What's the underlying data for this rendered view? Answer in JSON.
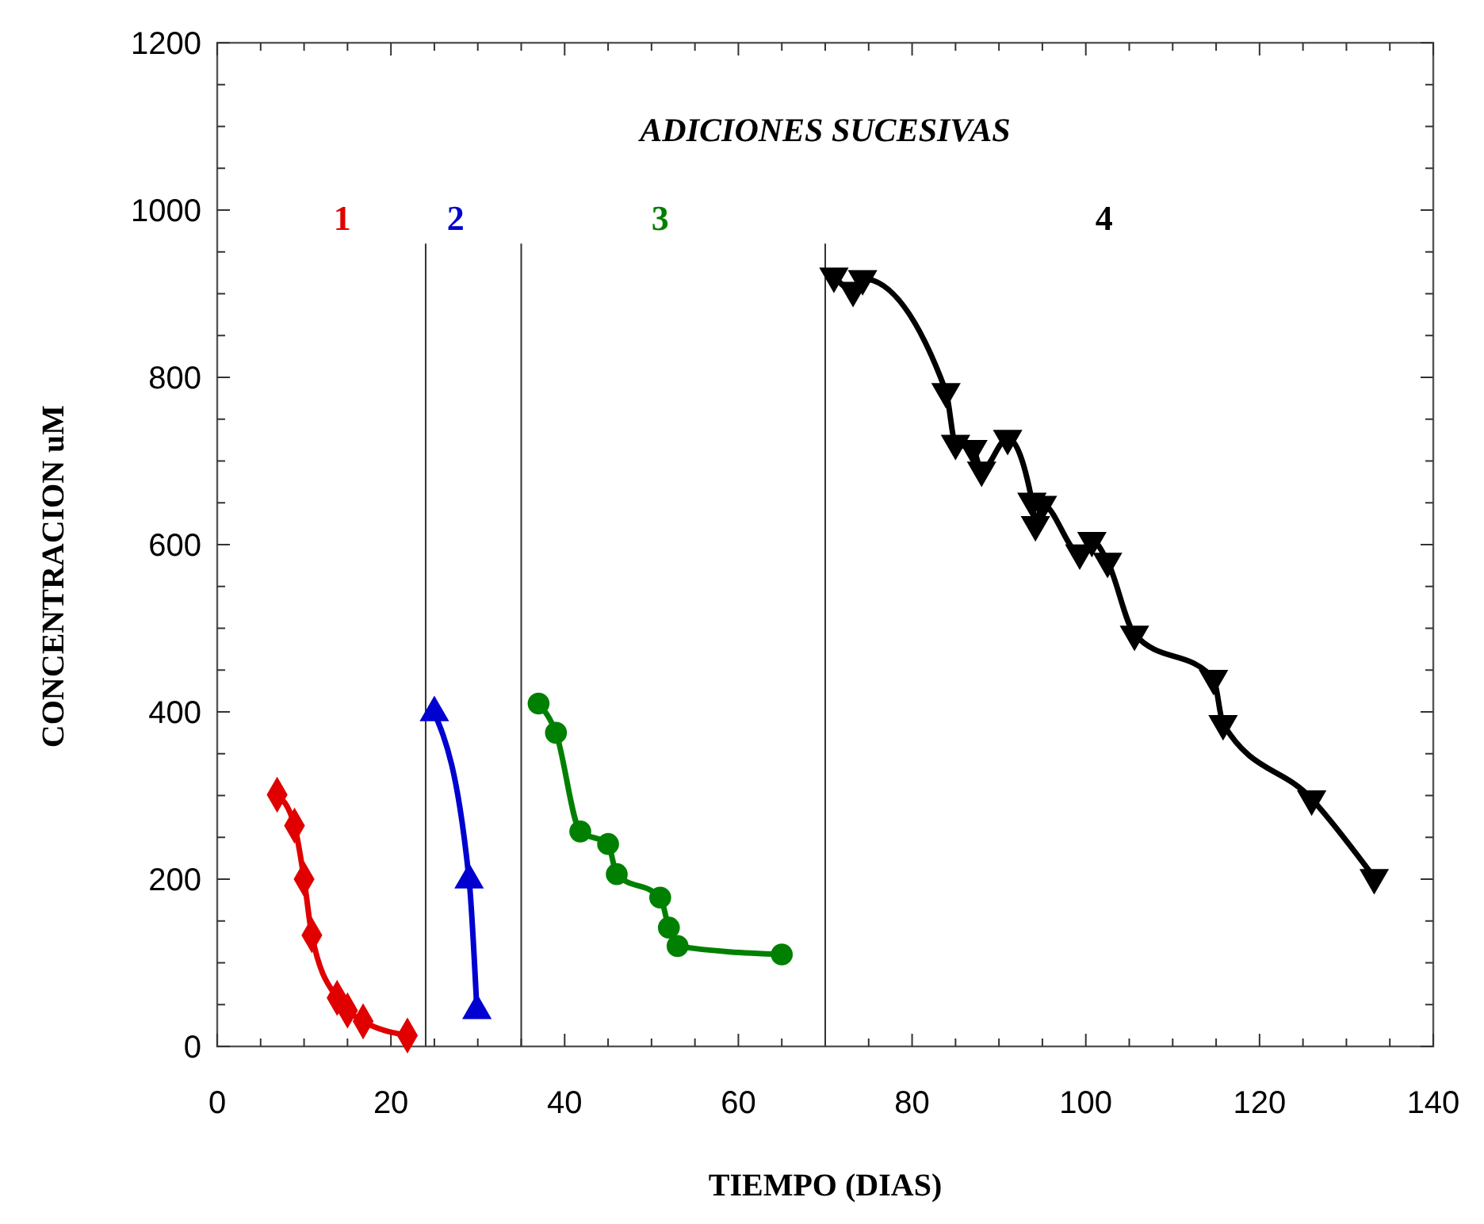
{
  "chart_data": {
    "type": "line",
    "title": "ADICIONES SUCESIVAS",
    "xlabel": "TIEMPO (DIAS)",
    "ylabel": "CONCENTRACION uM",
    "xlim": [
      0,
      140
    ],
    "xticks": [
      0,
      20,
      40,
      60,
      80,
      100,
      120,
      140
    ],
    "ylim": [
      0,
      1200
    ],
    "yticks": [
      0,
      200,
      400,
      600,
      800,
      1000,
      1200
    ],
    "grid": false,
    "ref_lines": [
      {
        "axis": "x",
        "value": 24
      },
      {
        "axis": "x",
        "value": 35
      },
      {
        "axis": "x",
        "value": 70
      }
    ],
    "series": [
      {
        "name": "1",
        "color": "#e00000",
        "marker": "diamond",
        "x": [
          6.9,
          8.9,
          10,
          10.9,
          13.8,
          15,
          16.8,
          21.9
        ],
        "values": [
          301,
          264,
          200,
          133,
          58,
          43,
          30,
          13
        ]
      },
      {
        "name": "2",
        "color": "#0000d0",
        "marker": "triangle",
        "x": [
          25,
          29,
          29.9
        ],
        "values": [
          399,
          199,
          43
        ]
      },
      {
        "name": "3",
        "color": "#008000",
        "marker": "circle",
        "x": [
          37,
          39,
          41.8,
          45,
          46,
          51,
          52,
          53,
          65
        ],
        "values": [
          410,
          375,
          257,
          242,
          206,
          178,
          142,
          120,
          110
        ]
      },
      {
        "name": "4",
        "color": "#000000",
        "marker": "triangle",
        "x": [
          71,
          73.2,
          74.3,
          83.9,
          85,
          87,
          88,
          91,
          93.8,
          94.2,
          95,
          99.3,
          100.7,
          102.5,
          105.6,
          114.7,
          115.8,
          126,
          133.2
        ],
        "values": [
          921,
          904,
          918,
          783,
          721,
          715,
          689,
          727,
          652,
          624,
          648,
          590,
          605,
          580,
          493,
          440,
          386,
          296,
          202
        ]
      }
    ]
  }
}
